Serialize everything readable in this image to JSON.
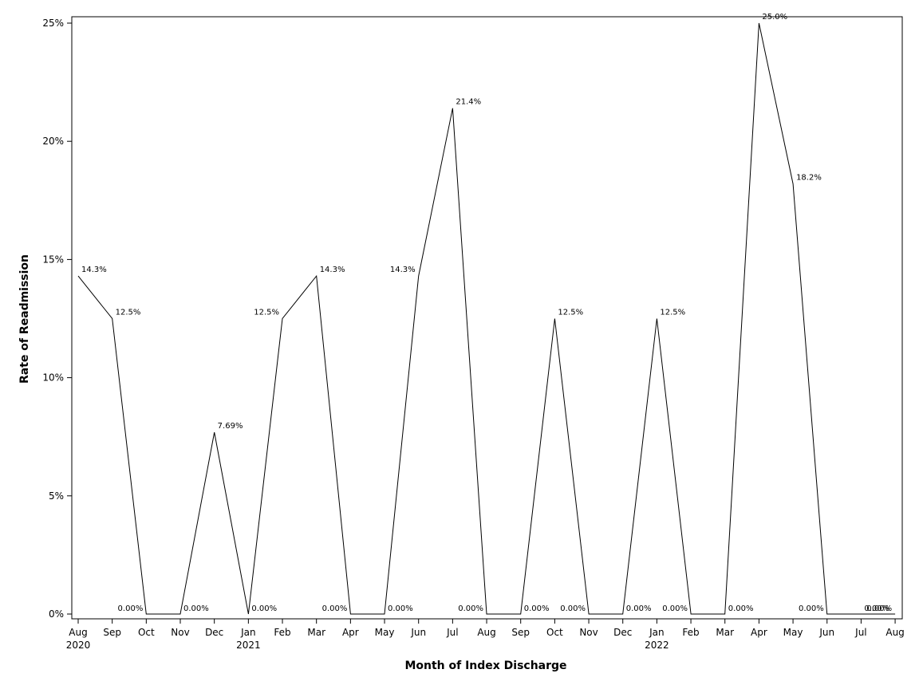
{
  "chart_data": {
    "type": "line",
    "title": "",
    "xlabel": "Month of Index Discharge",
    "ylabel": "Rate of Readmission",
    "ylim": [
      0,
      25
    ],
    "y_ticks": [
      {
        "value": 0,
        "label": "0%"
      },
      {
        "value": 5,
        "label": "5%"
      },
      {
        "value": 10,
        "label": "10%"
      },
      {
        "value": 15,
        "label": "15%"
      },
      {
        "value": 20,
        "label": "20%"
      },
      {
        "value": 25,
        "label": "25%"
      }
    ],
    "grid": false,
    "categories": [
      "Aug",
      "Sep",
      "Oct",
      "Nov",
      "Dec",
      "Jan",
      "Feb",
      "Mar",
      "Apr",
      "May",
      "Jun",
      "Jul",
      "Aug",
      "Sep",
      "Oct",
      "Nov",
      "Dec",
      "Jan",
      "Feb",
      "Mar",
      "Apr",
      "May",
      "Jun",
      "Jul",
      "Aug"
    ],
    "year_labels": {
      "0": "2020",
      "5": "2021",
      "17": "2022"
    },
    "series": [
      {
        "values": [
          14.3,
          12.5,
          0,
          0,
          7.69,
          0,
          12.5,
          14.3,
          0,
          0,
          14.3,
          21.4,
          0,
          0,
          12.5,
          0,
          0,
          12.5,
          0,
          0,
          25.0,
          18.2,
          0,
          0,
          0
        ],
        "labels": [
          "14.3%",
          "12.5%",
          "0.00%",
          "0.00%",
          "7.69%",
          "0.00%",
          "12.5%",
          "14.3%",
          "0.00%",
          "0.00%",
          "14.3%",
          "21.4%",
          "0.00%",
          "0.00%",
          "12.5%",
          "0.00%",
          "0.00%",
          "12.5%",
          "0.00%",
          "0.00%",
          "25.0%",
          "18.2%",
          "0.00%",
          "0.00%",
          "0.00%"
        ],
        "color": "#000000"
      }
    ]
  }
}
